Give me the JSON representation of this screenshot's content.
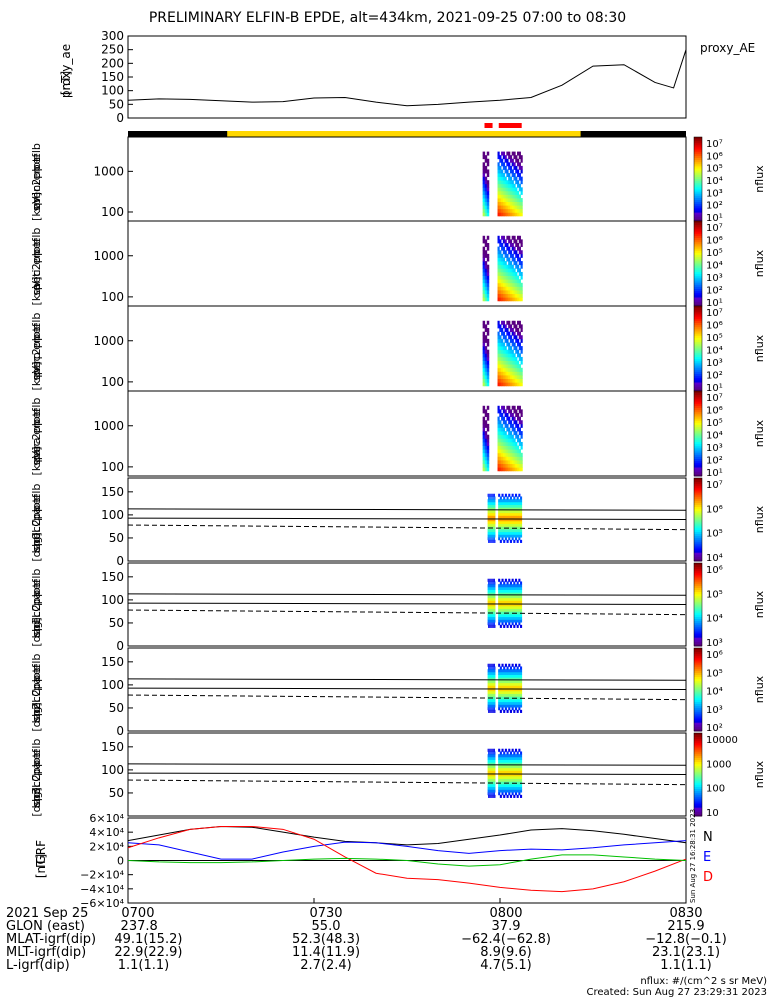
{
  "title": "PRELIMINARY ELFIN-B EPDE, alt=434km, 2021-09-25 07:00 to 08:30",
  "colors": {
    "sci_zone_bar": "#ffd700",
    "bar_track": "#000000",
    "burst_marker": "#ff0000",
    "igrf_n": "#000000",
    "igrf_e": "#0000ff",
    "igrf_d": "#ff0000",
    "igrf_extra": "#00c000"
  },
  "chart_data": [
    {
      "type": "line",
      "panel": "proxy_ae",
      "ylabel": "proxy_ae\n[nT]",
      "legend": "proxy_AE",
      "y_ticks": [
        "300",
        "250",
        "200",
        "150",
        "100",
        "50",
        "0"
      ],
      "ylim": [
        0,
        300
      ],
      "x_minutes": [
        0,
        5,
        10,
        15,
        20,
        25,
        30,
        35,
        40,
        45,
        50,
        55,
        60,
        65,
        70,
        75,
        80,
        85,
        88,
        90
      ],
      "values": [
        65,
        70,
        68,
        63,
        58,
        60,
        73,
        75,
        58,
        45,
        50,
        58,
        65,
        75,
        120,
        190,
        195,
        130,
        110,
        250
      ]
    },
    {
      "type": "heatmap",
      "panel": "omni",
      "ylabel": "elb\npef\nen\nspec2plot\nomni\n[keV]",
      "y_ticks": [
        "1000",
        "100"
      ],
      "ylim": [
        60,
        7000
      ],
      "colorbar_label": "nflux",
      "colorbar_ticks": [
        "10⁷",
        "10⁶",
        "10⁵",
        "10⁴",
        "10³",
        "10²",
        "10¹"
      ]
    },
    {
      "type": "heatmap",
      "panel": "anti",
      "ylabel": "elb\npef\nen\nspec2plot\nanti\n[keV]",
      "y_ticks": [
        "1000",
        "100"
      ],
      "ylim": [
        60,
        7000
      ],
      "colorbar_label": "nflux",
      "colorbar_ticks": [
        "10⁷",
        "10⁶",
        "10⁵",
        "10⁴",
        "10³",
        "10²",
        "10¹"
      ]
    },
    {
      "type": "heatmap",
      "panel": "perp",
      "ylabel": "elb\npef\nen\nspec2plot\nperp\n[keV]",
      "y_ticks": [
        "1000",
        "100"
      ],
      "ylim": [
        60,
        7000
      ],
      "colorbar_label": "nflux",
      "colorbar_ticks": [
        "10⁷",
        "10⁶",
        "10⁵",
        "10⁴",
        "10³",
        "10²",
        "10¹"
      ]
    },
    {
      "type": "heatmap",
      "panel": "para",
      "ylabel": "elb\npef\nen\nspec2plot\npara\n[keV]",
      "y_ticks": [
        "1000",
        "100"
      ],
      "ylim": [
        60,
        7000
      ],
      "colorbar_label": "nflux",
      "colorbar_ticks": [
        "10⁷",
        "10⁶",
        "10⁵",
        "10⁴",
        "10³",
        "10²",
        "10¹"
      ]
    },
    {
      "type": "heatmap",
      "panel": "ch0LC",
      "ylabel": "elb\npef\npa\nspec2plot\nch0LC\n[deg]",
      "y_ticks": [
        "150",
        "100",
        "50",
        "0"
      ],
      "ylim": [
        0,
        180
      ],
      "colorbar_label": "nflux",
      "colorbar_ticks": [
        "10⁷",
        "10⁶",
        "10⁵",
        "10⁴"
      ]
    },
    {
      "type": "heatmap",
      "panel": "ch1LC",
      "ylabel": "elb\npef\npa\nspec2plot\nch1LC\n[deg]",
      "y_ticks": [
        "150",
        "100",
        "50",
        "0"
      ],
      "ylim": [
        0,
        180
      ],
      "colorbar_label": "nflux",
      "colorbar_ticks": [
        "10⁶",
        "10⁵",
        "10⁴",
        "10³"
      ]
    },
    {
      "type": "heatmap",
      "panel": "ch2LC",
      "ylabel": "elb\npef\npa\nspec2plot\nch2LC\n[deg]",
      "y_ticks": [
        "150",
        "100",
        "50",
        "0"
      ],
      "ylim": [
        0,
        180
      ],
      "colorbar_label": "nflux",
      "colorbar_ticks": [
        "10⁶",
        "10⁵",
        "10⁴",
        "10³",
        "10²"
      ]
    },
    {
      "type": "heatmap",
      "panel": "ch3LC",
      "ylabel": "elb\npef\npa\nspec2plot\nch3LC\n[deg]",
      "y_ticks": [
        "150",
        "100",
        "50"
      ],
      "ylim": [
        0,
        180
      ],
      "colorbar_label": "nflux",
      "colorbar_ticks": [
        "10000",
        "1000",
        "100",
        "10"
      ]
    },
    {
      "type": "line",
      "panel": "igrf",
      "ylabel": "IGRF\n[nT]",
      "y_ticks": [
        "6×10⁴",
        "4×10⁴",
        "2×10⁴",
        "0",
        "−2×10⁴",
        "−4×10⁴",
        "−6×10⁴"
      ],
      "ylim": [
        -60000,
        60000
      ],
      "legend": [
        "N",
        "E",
        "D"
      ],
      "side_label": "Sun Aug 27 16:28:31 2023",
      "x_minutes": [
        0,
        5,
        10,
        15,
        20,
        25,
        30,
        35,
        40,
        45,
        50,
        55,
        60,
        65,
        70,
        75,
        80,
        85,
        90
      ],
      "series": [
        {
          "name": "N",
          "values": [
            28000,
            36000,
            44000,
            48000,
            47000,
            40000,
            33000,
            27000,
            25000,
            22000,
            24000,
            30000,
            36000,
            43000,
            45000,
            42000,
            37000,
            31000,
            25000
          ]
        },
        {
          "name": "E",
          "values": [
            25000,
            22000,
            12000,
            2000,
            2000,
            12000,
            20000,
            26000,
            25000,
            20000,
            14000,
            10000,
            14000,
            16000,
            15000,
            18000,
            22000,
            25000,
            28000
          ]
        },
        {
          "name": "D",
          "values": [
            18000,
            32000,
            44000,
            48000,
            48000,
            44000,
            30000,
            5000,
            -18000,
            -25000,
            -27000,
            -32000,
            -38000,
            -42000,
            -44000,
            -40000,
            -30000,
            -15000,
            2000
          ]
        },
        {
          "name": "extra",
          "values": [
            0,
            -2000,
            -3000,
            -3000,
            -2000,
            0,
            2000,
            3000,
            2000,
            0,
            -5000,
            -8000,
            -6000,
            2000,
            8000,
            8000,
            5000,
            2000,
            0
          ]
        }
      ]
    }
  ],
  "x_axis": {
    "tick_labels": [
      "0700",
      "0730",
      "0800",
      "0830"
    ],
    "tick_minutes": [
      0,
      30,
      60,
      90
    ]
  },
  "footer": {
    "rows": [
      {
        "label": "2021 Sep 25",
        "values": [
          "0700",
          "0730",
          "0800",
          "0830"
        ]
      },
      {
        "label": "GLON (east)",
        "values": [
          "237.8",
          "55.0",
          "37.9",
          "215.9"
        ]
      },
      {
        "label": "MLAT-igrf(dip)",
        "values": [
          "49.1(15.2)",
          "52.3(48.3)",
          "−62.4(−62.8)",
          "−12.8(−0.1)"
        ]
      },
      {
        "label": "MLT-igrf(dip)",
        "values": [
          "22.9(22.9)",
          "11.4(11.9)",
          "8.9(9.6)",
          "23.1(23.1)"
        ]
      },
      {
        "label": "L-igrf(dip)",
        "values": [
          "1.1(1.1)",
          "2.7(2.4)",
          "4.7(5.1)",
          "1.1(1.1)"
        ]
      }
    ],
    "units_note": "nflux: #/(cm^2 s sr MeV)",
    "created": "Created: Sun Aug 27 23:29:31 2023"
  }
}
